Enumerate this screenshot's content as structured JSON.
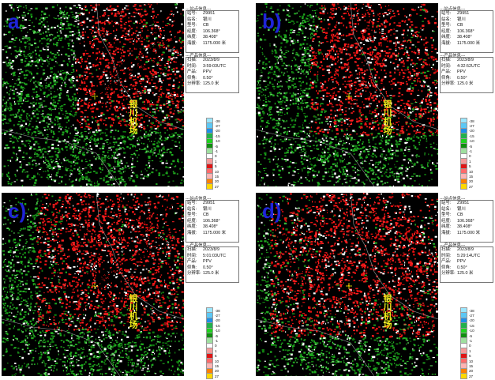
{
  "sidebar_site_header": "---站点信息---",
  "sidebar_product_header": "---产品信息---",
  "airport_label": "银川机场",
  "panels": [
    {
      "letter": "a",
      "site": {
        "id_label": "站号:",
        "id": "Z9951",
        "name_label": "站名:",
        "name": "银川",
        "type_label": "型号:",
        "type": "CB",
        "lon_label": "经度:",
        "lon": "106.368°",
        "lat_label": "纬度:",
        "lat": "38.408°",
        "alt_label": "海拔:",
        "alt": "1175.000 米"
      },
      "product": {
        "scan_label": "扫描:",
        "scan": "2023/8/9",
        "time_label": "时间:",
        "time": "3:59:03UTC",
        "prod_label": "产品:",
        "prod": "PPV",
        "elev_label": "仰角:",
        "elev": "0.50°",
        "res_label": "分辨率:",
        "res": "125.0 米"
      }
    },
    {
      "letter": "b)",
      "site": {
        "id_label": "站号:",
        "id": "Z9951",
        "name_label": "站名:",
        "name": "银川",
        "type_label": "型号:",
        "type": "CB",
        "lon_label": "经度:",
        "lon": "106.368°",
        "lat_label": "纬度:",
        "lat": "38.408°",
        "alt_label": "海拔:",
        "alt": "1175.000 米"
      },
      "product": {
        "scan_label": "扫描:",
        "scan": "2023/8/9",
        "time_label": "时间:",
        "time": "4:32:52UTC",
        "prod_label": "产品:",
        "prod": "PPV",
        "elev_label": "仰角:",
        "elev": "0.50°",
        "res_label": "分辨率:",
        "res": "125.0 米"
      }
    },
    {
      "letter": "c)",
      "site": {
        "id_label": "站号:",
        "id": "Z9951",
        "name_label": "站名:",
        "name": "银川",
        "type_label": "型号:",
        "type": "CB",
        "lon_label": "经度:",
        "lon": "106.368°",
        "lat_label": "纬度:",
        "lat": "38.408°",
        "alt_label": "海拔:",
        "alt": "1175.000 米"
      },
      "product": {
        "scan_label": "扫描:",
        "scan": "2023/8/9",
        "time_label": "时间:",
        "time": "5:01:03UTC",
        "prod_label": "产品:",
        "prod": "PPV",
        "elev_label": "仰角:",
        "elev": "0.50°",
        "res_label": "分辨率:",
        "res": "125.0 米"
      }
    },
    {
      "letter": "d)",
      "site": {
        "id_label": "站号:",
        "id": "Z9951",
        "name_label": "站名:",
        "name": "银川",
        "type_label": "型号:",
        "type": "CB",
        "lon_label": "经度:",
        "lon": "106.368°",
        "lat_label": "纬度:",
        "lat": "38.408°",
        "alt_label": "海拔:",
        "alt": "1175.000 米"
      },
      "product": {
        "scan_label": "扫描:",
        "scan": "2023/8/9",
        "time_label": "时间:",
        "time": "5:29:14UTC",
        "prod_label": "产品:",
        "prod": "PPV",
        "elev_label": "仰角:",
        "elev": "0.50°",
        "res_label": "分辨率:",
        "res": "125.0 米"
      }
    }
  ],
  "legend": [
    {
      "label": "-38",
      "color": "#9be7ff"
    },
    {
      "label": "-27",
      "color": "#5bc8f5"
    },
    {
      "label": "-20",
      "color": "#1e90e8"
    },
    {
      "label": "-15",
      "color": "#22b14c"
    },
    {
      "label": "-10",
      "color": "#1fd21f"
    },
    {
      "label": "-5",
      "color": "#0f8f0f"
    },
    {
      "label": "-1",
      "color": "#9fdf9f"
    },
    {
      "label": "0",
      "color": "#ffffff"
    },
    {
      "label": "1",
      "color": "#f59a9a"
    },
    {
      "label": "5",
      "color": "#e01414"
    },
    {
      "label": "10",
      "color": "#ff6a6a"
    },
    {
      "label": "15",
      "color": "#ffb3b3"
    },
    {
      "label": "20",
      "color": "#ff7f00"
    },
    {
      "label": "27",
      "color": "#ffd800"
    }
  ]
}
